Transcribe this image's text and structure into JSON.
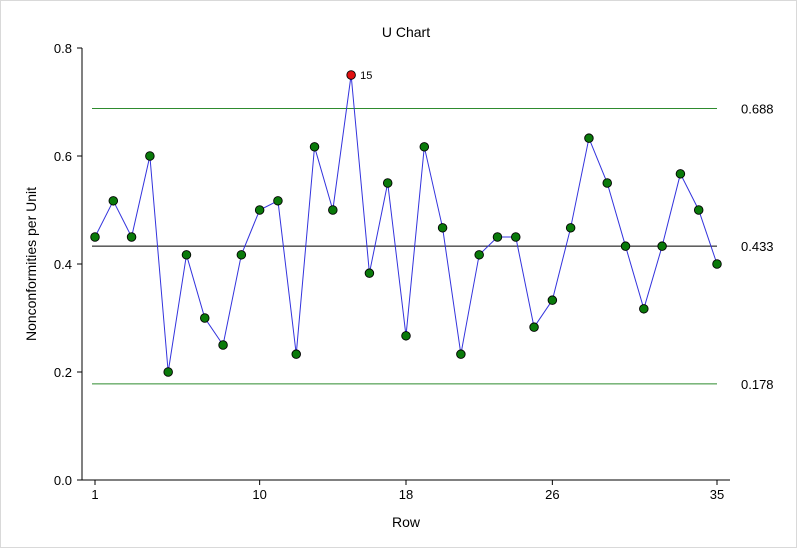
{
  "chart_data": {
    "type": "line",
    "title": "U Chart",
    "xlabel": "Row",
    "ylabel": "Nonconformities per Unit",
    "x_ticks": [
      1,
      10,
      18,
      26,
      35
    ],
    "y_ticks": [
      "0.0",
      "0.2",
      "0.4",
      "0.6",
      "0.8"
    ],
    "xlim": [
      1,
      35
    ],
    "ylim": [
      0,
      0.8
    ],
    "grid": false,
    "x": [
      1,
      2,
      3,
      4,
      5,
      6,
      7,
      8,
      9,
      10,
      11,
      12,
      13,
      14,
      15,
      16,
      17,
      18,
      19,
      20,
      21,
      22,
      23,
      24,
      25,
      26,
      27,
      28,
      29,
      30,
      31,
      32,
      33,
      34,
      35
    ],
    "values": [
      0.45,
      0.517,
      0.45,
      0.6,
      0.2,
      0.417,
      0.3,
      0.25,
      0.417,
      0.5,
      0.517,
      0.233,
      0.617,
      0.5,
      0.75,
      0.383,
      0.55,
      0.267,
      0.617,
      0.467,
      0.233,
      0.417,
      0.45,
      0.45,
      0.283,
      0.333,
      0.467,
      0.633,
      0.55,
      0.433,
      0.317,
      0.433,
      0.567,
      0.5,
      0.4
    ],
    "control_limits": {
      "ucl": 0.688,
      "ucl_label": "0.688",
      "center": 0.433,
      "center_label": "0.433",
      "lcl": 0.178,
      "lcl_label": "0.178"
    },
    "out_of_control": [
      {
        "x": 15,
        "label": "15"
      }
    ],
    "colors": {
      "series_line": "#3333dd",
      "point_fill": "#0a7a0a",
      "out_of_control_fill": "#e01010",
      "limit_line": "#2e8b2e",
      "center_line": "#000000",
      "axis": "#000000"
    }
  }
}
